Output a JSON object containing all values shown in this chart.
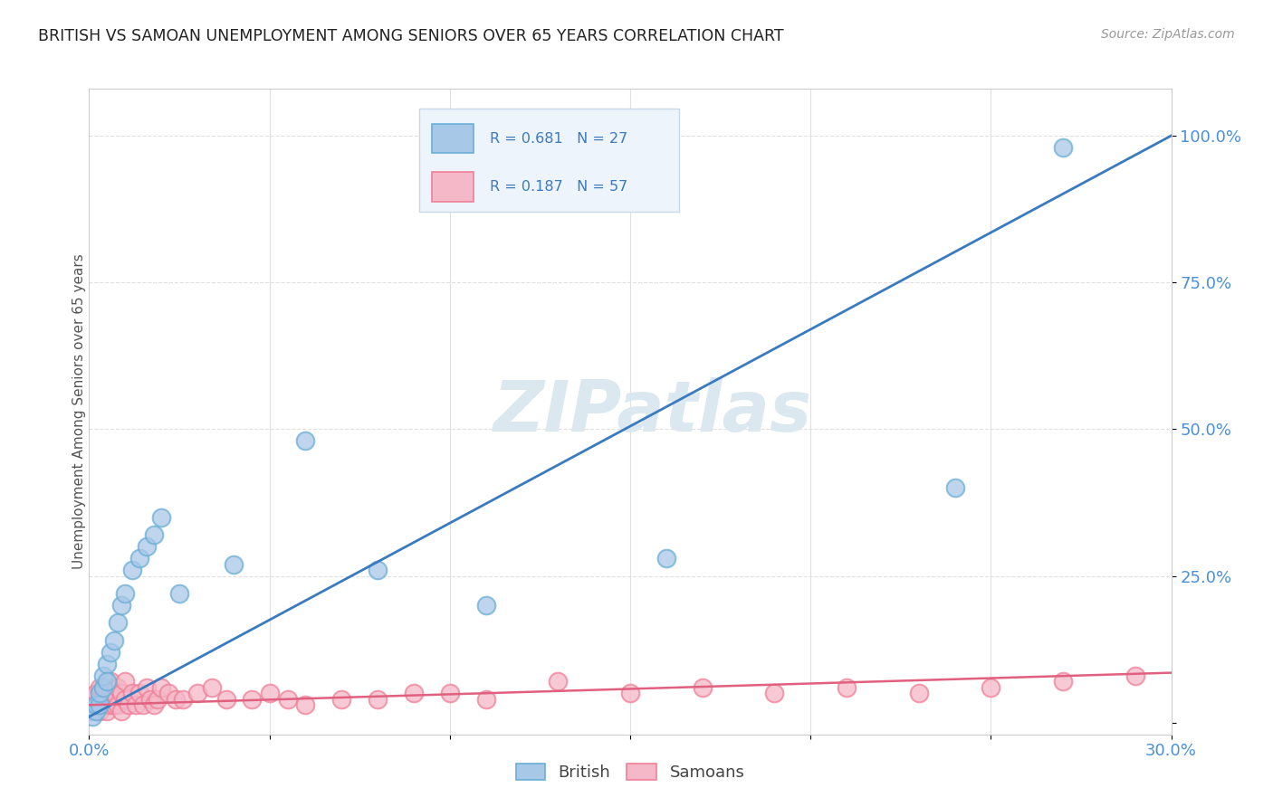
{
  "title": "BRITISH VS SAMOAN UNEMPLOYMENT AMONG SENIORS OVER 65 YEARS CORRELATION CHART",
  "source": "Source: ZipAtlas.com",
  "ylabel": "Unemployment Among Seniors over 65 years",
  "xlim": [
    0.0,
    0.3
  ],
  "ylim": [
    -0.02,
    1.08
  ],
  "british_R": 0.681,
  "british_N": 27,
  "samoan_R": 0.187,
  "samoan_N": 57,
  "british_color": "#a8c8e8",
  "samoan_color": "#f4b8c8",
  "british_edge_color": "#6baed6",
  "samoan_edge_color": "#f08098",
  "british_line_color": "#3a7abf",
  "samoan_line_color": "#e06080",
  "title_color": "#222222",
  "axis_label_color": "#4a90d9",
  "watermark_color": "#dce8f0",
  "background_color": "#ffffff",
  "legend_box_color": "#eef4fc",
  "legend_border_color": "#c8d8e8",
  "british_x": [
    0.001,
    0.002,
    0.002,
    0.003,
    0.003,
    0.004,
    0.004,
    0.005,
    0.005,
    0.006,
    0.007,
    0.008,
    0.009,
    0.01,
    0.012,
    0.014,
    0.016,
    0.018,
    0.02,
    0.025,
    0.04,
    0.06,
    0.08,
    0.11,
    0.16,
    0.24,
    0.27
  ],
  "british_y": [
    0.01,
    0.02,
    0.03,
    0.03,
    0.05,
    0.06,
    0.08,
    0.1,
    0.07,
    0.12,
    0.14,
    0.17,
    0.2,
    0.22,
    0.26,
    0.28,
    0.3,
    0.32,
    0.35,
    0.22,
    0.27,
    0.48,
    0.26,
    0.2,
    0.28,
    0.4,
    0.98
  ],
  "samoan_x": [
    0.001,
    0.001,
    0.002,
    0.002,
    0.003,
    0.003,
    0.003,
    0.004,
    0.004,
    0.005,
    0.005,
    0.005,
    0.006,
    0.006,
    0.006,
    0.007,
    0.007,
    0.008,
    0.008,
    0.009,
    0.009,
    0.01,
    0.01,
    0.011,
    0.012,
    0.013,
    0.014,
    0.015,
    0.016,
    0.017,
    0.018,
    0.019,
    0.02,
    0.022,
    0.024,
    0.026,
    0.03,
    0.034,
    0.038,
    0.045,
    0.05,
    0.055,
    0.06,
    0.07,
    0.08,
    0.09,
    0.1,
    0.11,
    0.13,
    0.15,
    0.17,
    0.19,
    0.21,
    0.23,
    0.25,
    0.27,
    0.29
  ],
  "samoan_y": [
    0.02,
    0.04,
    0.03,
    0.05,
    0.02,
    0.04,
    0.06,
    0.03,
    0.05,
    0.02,
    0.04,
    0.06,
    0.03,
    0.05,
    0.07,
    0.03,
    0.05,
    0.03,
    0.06,
    0.02,
    0.05,
    0.04,
    0.07,
    0.03,
    0.05,
    0.03,
    0.05,
    0.03,
    0.06,
    0.04,
    0.03,
    0.04,
    0.06,
    0.05,
    0.04,
    0.04,
    0.05,
    0.06,
    0.04,
    0.04,
    0.05,
    0.04,
    0.03,
    0.04,
    0.04,
    0.05,
    0.05,
    0.04,
    0.07,
    0.05,
    0.06,
    0.05,
    0.06,
    0.05,
    0.06,
    0.07,
    0.08
  ],
  "grid_color": "#e0e0e0",
  "spine_color": "#cccccc"
}
